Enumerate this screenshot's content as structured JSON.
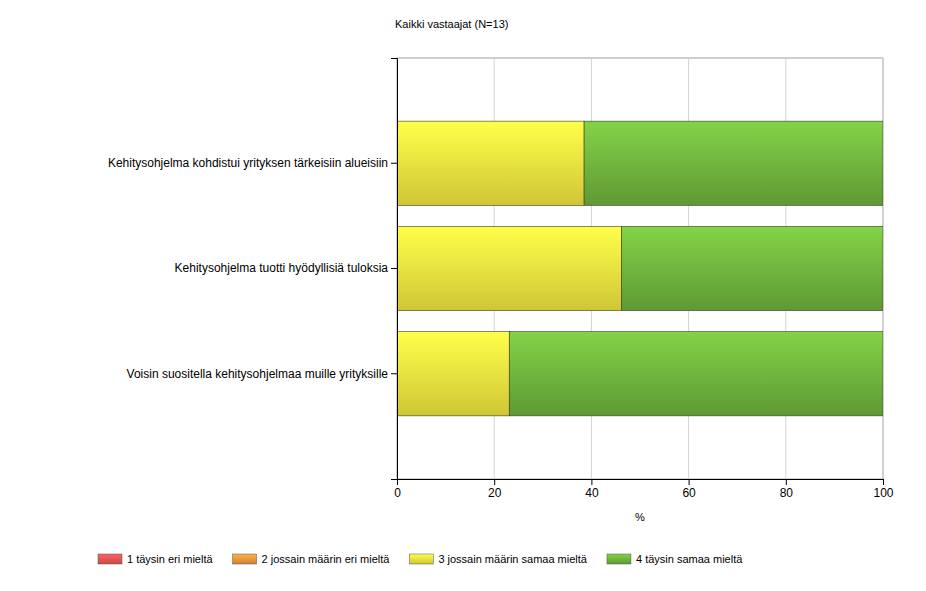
{
  "chart_data": {
    "type": "bar",
    "orientation": "horizontal",
    "stacked": true,
    "title": "Kaikki vastaajat (N=13)",
    "xlabel": "%",
    "categories": [
      "Kehitysohjelma kohdistui yrityksen tärkeisiin alueisiin",
      "Kehitysohjelma tuotti hyödyllisiä tuloksia",
      "Voisin suositella kehitysohjelmaa muille yrityksille"
    ],
    "series": [
      {
        "name": "1 täysin eri mieltä",
        "color": "#e05050",
        "values": [
          0,
          0,
          0
        ]
      },
      {
        "name": "2 jossain määrin eri mieltä",
        "color": "#e8903a",
        "values": [
          0,
          0,
          0
        ]
      },
      {
        "name": "3 jossain määrin samaa mieltä",
        "color": "#e6dc3c",
        "values": [
          38.5,
          46.2,
          23.1
        ]
      },
      {
        "name": "4 täysin samaa mieltä",
        "color": "#6aaa3a",
        "values": [
          61.5,
          53.8,
          76.9
        ]
      }
    ],
    "xlim": [
      0,
      100
    ],
    "xticks": [
      0,
      20,
      40,
      60,
      80,
      100
    ],
    "grid": true,
    "legend": "bottom"
  }
}
